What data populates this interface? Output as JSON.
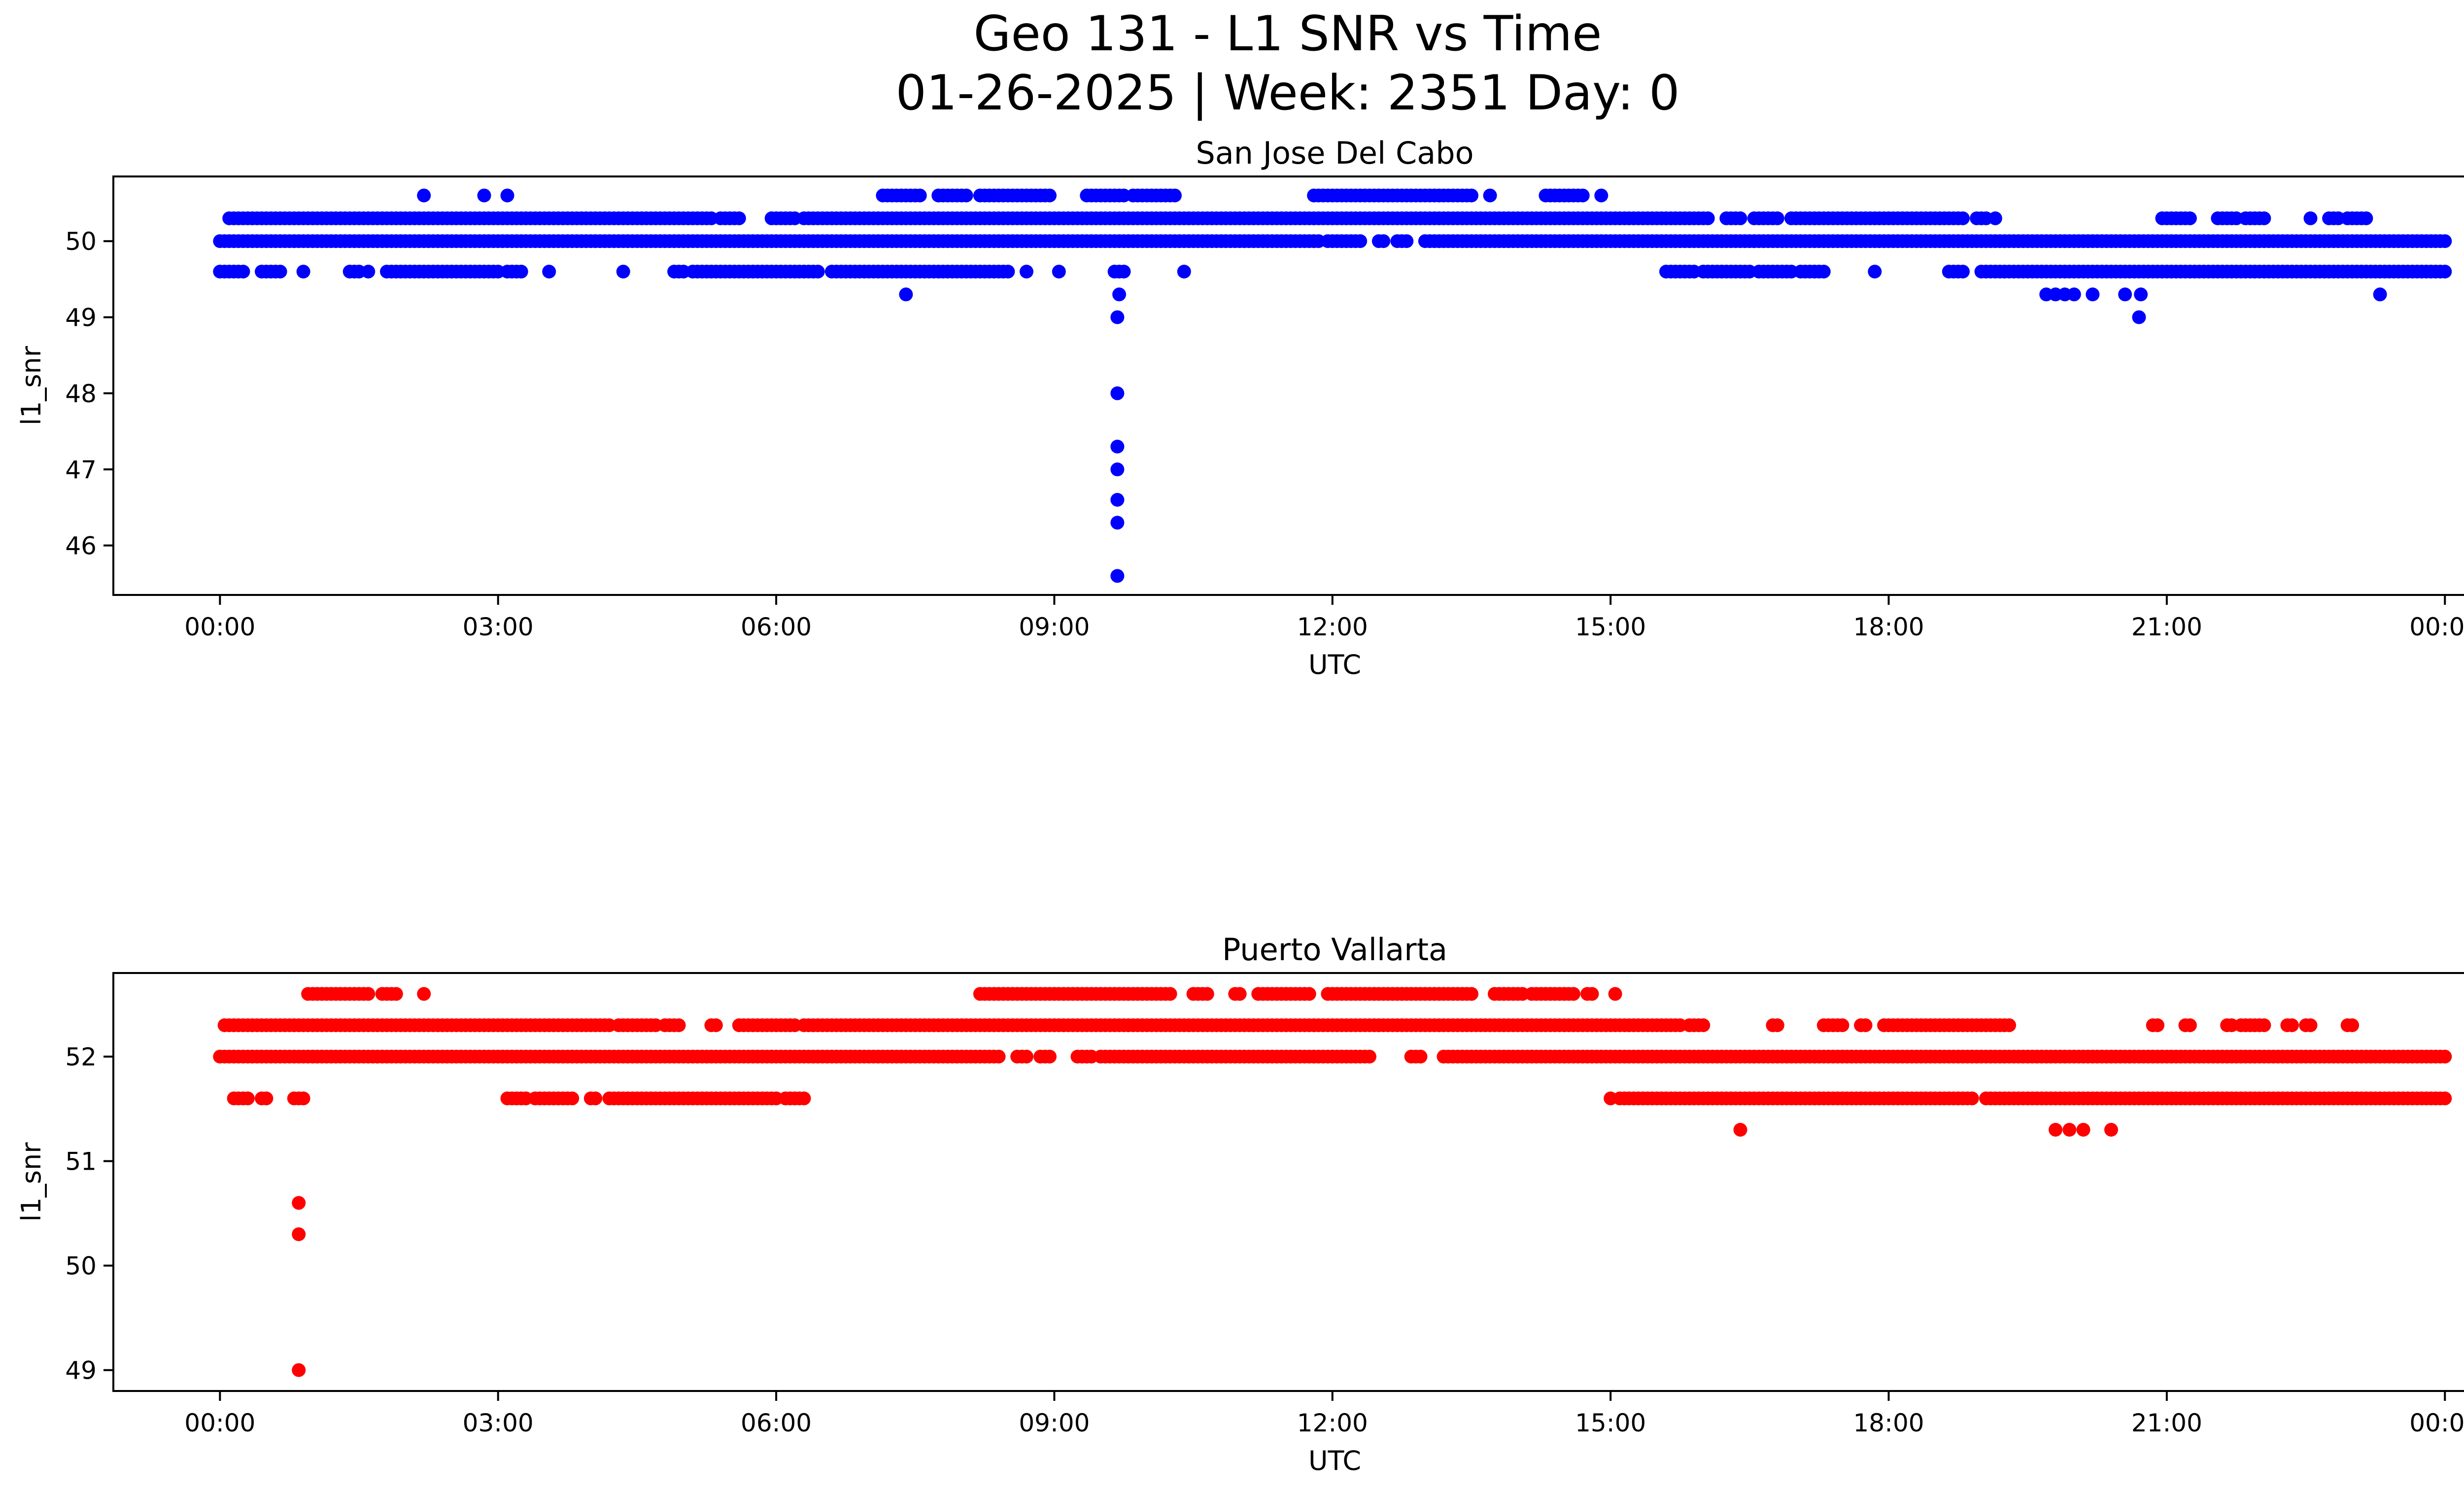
{
  "figure": {
    "title_line1": "Geo 131 - L1 SNR vs Time",
    "title_line2": "01-26-2025 | Week: 2351 Day: 0"
  },
  "chart_data": [
    {
      "type": "scatter",
      "title": "San Jose Del Cabo",
      "xlabel": "UTC",
      "ylabel": "l1_snr",
      "color": "#0000ff",
      "xlim_hours": [
        -1.15,
        25.2
      ],
      "ylim": [
        45.35,
        50.85
      ],
      "yticks": [
        46,
        47,
        48,
        49,
        50
      ],
      "xticks": [
        {
          "h": 0,
          "label": "00:00"
        },
        {
          "h": 3,
          "label": "03:00"
        },
        {
          "h": 6,
          "label": "06:00"
        },
        {
          "h": 9,
          "label": "09:00"
        },
        {
          "h": 12,
          "label": "12:00"
        },
        {
          "h": 15,
          "label": "15:00"
        },
        {
          "h": 18,
          "label": "18:00"
        },
        {
          "h": 21,
          "label": "21:00"
        },
        {
          "h": 24,
          "label": "00:00"
        }
      ],
      "bands": [
        {
          "y": 50.0,
          "x": [
            [
              0,
              11.85
            ],
            [
              11.95,
              12.3
            ],
            [
              12.5,
              12.55
            ],
            [
              12.7,
              12.8
            ],
            [
              13.0,
              24.0
            ]
          ]
        },
        {
          "y": 50.3,
          "x": [
            [
              0.1,
              5.2
            ],
            [
              5.25,
              5.3
            ],
            [
              5.4,
              5.6
            ],
            [
              5.95,
              6.2
            ],
            [
              6.3,
              16.05
            ],
            [
              16.25,
              16.4
            ],
            [
              16.55,
              16.8
            ],
            [
              16.95,
              18.8
            ],
            [
              18.95,
              19.05
            ],
            [
              20.95,
              21.25
            ],
            [
              21.55,
              21.75
            ],
            [
              21.85,
              22.05
            ],
            [
              22.75,
              22.85
            ],
            [
              22.95,
              23.15
            ]
          ]
        },
        {
          "y": 49.6,
          "x": [
            [
              0,
              0.25
            ],
            [
              0.45,
              0.65
            ],
            [
              1.4,
              1.5
            ],
            [
              1.8,
              3.0
            ],
            [
              3.1,
              3.25
            ],
            [
              4.9,
              5.0
            ],
            [
              5.1,
              6.45
            ],
            [
              6.6,
              8.5
            ],
            [
              9.65,
              9.75
            ],
            [
              15.6,
              15.9
            ],
            [
              16.0,
              16.5
            ],
            [
              16.6,
              16.95
            ],
            [
              17.05,
              17.3
            ],
            [
              18.65,
              18.8
            ],
            [
              19.0,
              24.0
            ]
          ]
        },
        {
          "y": 50.6,
          "x": [
            [
              7.15,
              7.55
            ],
            [
              7.75,
              8.05
            ],
            [
              8.2,
              8.95
            ],
            [
              9.35,
              9.75
            ],
            [
              9.85,
              10.3
            ],
            [
              11.8,
              13.5
            ],
            [
              14.3,
              14.7
            ]
          ]
        }
      ],
      "points": [
        {
          "x": 0.9,
          "y": 49.6
        },
        {
          "x": 1.6,
          "y": 49.6
        },
        {
          "x": 2.2,
          "y": 50.6
        },
        {
          "x": 2.85,
          "y": 50.6
        },
        {
          "x": 3.1,
          "y": 50.6
        },
        {
          "x": 3.55,
          "y": 49.6
        },
        {
          "x": 4.35,
          "y": 49.6
        },
        {
          "x": 7.4,
          "y": 49.3
        },
        {
          "x": 8.7,
          "y": 49.6
        },
        {
          "x": 9.05,
          "y": 49.6
        },
        {
          "x": 9.7,
          "y": 49.3
        },
        {
          "x": 9.68,
          "y": 49.0
        },
        {
          "x": 9.68,
          "y": 48.0
        },
        {
          "x": 9.68,
          "y": 47.3
        },
        {
          "x": 9.68,
          "y": 47.0
        },
        {
          "x": 9.68,
          "y": 46.6
        },
        {
          "x": 9.68,
          "y": 46.3
        },
        {
          "x": 9.68,
          "y": 45.6
        },
        {
          "x": 10.4,
          "y": 49.6
        },
        {
          "x": 13.7,
          "y": 50.6
        },
        {
          "x": 14.9,
          "y": 50.6
        },
        {
          "x": 17.85,
          "y": 49.6
        },
        {
          "x": 19.15,
          "y": 50.3
        },
        {
          "x": 19.7,
          "y": 49.3
        },
        {
          "x": 19.8,
          "y": 49.3
        },
        {
          "x": 19.9,
          "y": 49.3
        },
        {
          "x": 20.0,
          "y": 49.3
        },
        {
          "x": 20.2,
          "y": 49.3
        },
        {
          "x": 20.55,
          "y": 49.3
        },
        {
          "x": 20.72,
          "y": 49.3
        },
        {
          "x": 20.7,
          "y": 49.0
        },
        {
          "x": 22.55,
          "y": 50.3
        },
        {
          "x": 23.3,
          "y": 49.3
        }
      ]
    },
    {
      "type": "scatter",
      "title": "Puerto Vallarta",
      "xlabel": "UTC",
      "ylabel": "l1_snr",
      "color": "#ff0000",
      "xlim_hours": [
        -1.15,
        25.2
      ],
      "ylim": [
        48.8,
        52.8
      ],
      "yticks": [
        49,
        50,
        51,
        52
      ],
      "xticks": [
        {
          "h": 0,
          "label": "00:00"
        },
        {
          "h": 3,
          "label": "03:00"
        },
        {
          "h": 6,
          "label": "06:00"
        },
        {
          "h": 9,
          "label": "09:00"
        },
        {
          "h": 12,
          "label": "12:00"
        },
        {
          "h": 15,
          "label": "15:00"
        },
        {
          "h": 18,
          "label": "18:00"
        },
        {
          "h": 21,
          "label": "21:00"
        },
        {
          "h": 24,
          "label": "00:00"
        }
      ],
      "bands": [
        {
          "y": 52.0,
          "x": [
            [
              0,
              8.4
            ],
            [
              8.6,
              8.7
            ],
            [
              8.85,
              8.95
            ],
            [
              9.25,
              9.4
            ],
            [
              9.5,
              12.4
            ],
            [
              12.85,
              12.95
            ],
            [
              13.2,
              24.0
            ]
          ]
        },
        {
          "y": 52.3,
          "x": [
            [
              0.05,
              4.2
            ],
            [
              4.3,
              4.7
            ],
            [
              4.8,
              4.95
            ],
            [
              5.3,
              5.35
            ],
            [
              5.6,
              6.2
            ],
            [
              6.3,
              15.75
            ],
            [
              15.85,
              16.0
            ],
            [
              16.75,
              16.8
            ],
            [
              17.3,
              17.5
            ],
            [
              17.7,
              17.75
            ],
            [
              17.95,
              19.3
            ],
            [
              20.85,
              20.9
            ],
            [
              21.2,
              21.25
            ],
            [
              21.65,
              21.7
            ],
            [
              21.8,
              22.05
            ],
            [
              22.3,
              22.35
            ],
            [
              22.5,
              22.55
            ],
            [
              22.95,
              23.0
            ]
          ]
        },
        {
          "y": 51.6,
          "x": [
            [
              0.15,
              0.3
            ],
            [
              0.45,
              0.5
            ],
            [
              0.8,
              0.9
            ],
            [
              3.1,
              3.3
            ],
            [
              3.4,
              3.8
            ],
            [
              4.0,
              4.05
            ],
            [
              4.2,
              6.0
            ],
            [
              6.1,
              6.3
            ],
            [
              15.1,
              18.9
            ],
            [
              19.05,
              24.0
            ]
          ]
        },
        {
          "y": 52.6,
          "x": [
            [
              0.95,
              1.6
            ],
            [
              1.75,
              1.9
            ],
            [
              8.2,
              10.25
            ],
            [
              10.5,
              10.65
            ],
            [
              10.95,
              11.0
            ],
            [
              11.2,
              11.75
            ],
            [
              11.95,
              13.5
            ],
            [
              13.75,
              14.05
            ],
            [
              14.15,
              14.6
            ],
            [
              14.75,
              14.8
            ]
          ]
        }
      ],
      "points": [
        {
          "x": 2.2,
          "y": 52.6
        },
        {
          "x": 15.05,
          "y": 52.6
        },
        {
          "x": 15.0,
          "y": 51.6
        },
        {
          "x": 16.4,
          "y": 51.3
        },
        {
          "x": 19.8,
          "y": 51.3
        },
        {
          "x": 19.95,
          "y": 51.3
        },
        {
          "x": 20.1,
          "y": 51.3
        },
        {
          "x": 20.4,
          "y": 51.3
        },
        {
          "x": 0.85,
          "y": 50.6
        },
        {
          "x": 0.85,
          "y": 50.3
        },
        {
          "x": 0.85,
          "y": 49.0
        }
      ]
    }
  ]
}
